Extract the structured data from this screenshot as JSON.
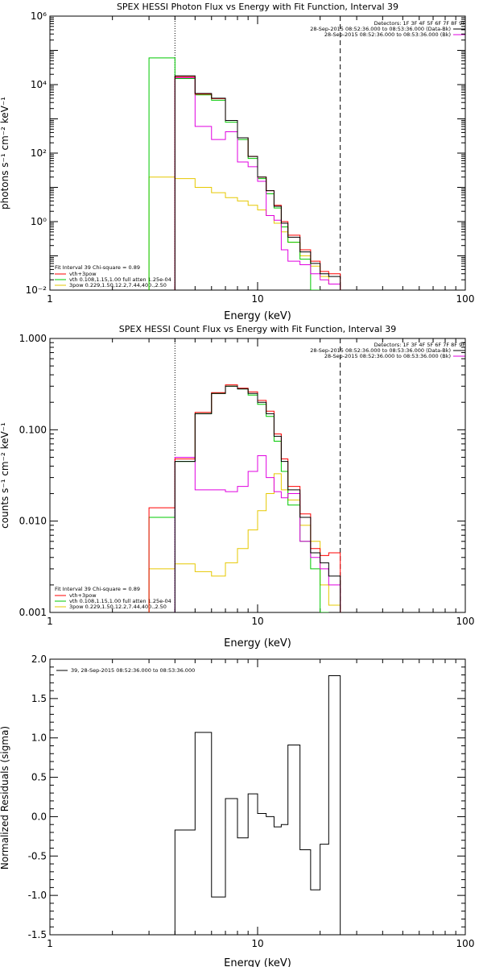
{
  "colors": {
    "black": "#000000",
    "red": "#ff0000",
    "green": "#00c800",
    "magenta": "#e000e0",
    "yellow": "#e6c800"
  },
  "chart_data": [
    {
      "type": "line",
      "title": "SPEX HESSI Photon Flux vs Energy with Fit Function, Interval 39",
      "xlabel": "Energy (keV)",
      "ylabel": "photons s⁻¹ cm⁻² keV⁻¹",
      "xscale": "log",
      "yscale": "log",
      "xlim": [
        1,
        100
      ],
      "ylim": [
        0.01,
        1000000
      ],
      "xticks": [
        "1",
        "10",
        "100"
      ],
      "yticks": [
        "10⁻²",
        "10⁰",
        "10²",
        "10⁴",
        "10⁶"
      ],
      "ytick_values": [
        0.01,
        1,
        100,
        10000,
        1000000
      ],
      "edges": [
        3,
        4,
        5,
        6,
        7,
        8,
        9,
        10,
        11,
        12,
        13,
        14,
        16,
        18,
        20,
        22,
        25
      ],
      "vlines": [
        {
          "x": 4,
          "style": "dotted"
        },
        {
          "x": 25,
          "style": "dashed"
        }
      ],
      "series": [
        {
          "color": "black",
          "values": [
            null,
            18000,
            5500,
            4000,
            900,
            280,
            80,
            20,
            8,
            2.8,
            0.9,
            0.35,
            0.13,
            0.06,
            0.03,
            0.025
          ]
        },
        {
          "color": "red",
          "values": [
            null,
            17000,
            5300,
            3900,
            900,
            280,
            80,
            20,
            8,
            3.0,
            1.0,
            0.4,
            0.15,
            0.07,
            0.035,
            0.03
          ]
        },
        {
          "color": "green",
          "values": [
            60000,
            15000,
            5000,
            3500,
            800,
            250,
            70,
            18,
            6.5,
            2.5,
            0.7,
            0.25,
            0.08,
            0.01,
            null,
            null
          ]
        },
        {
          "color": "magenta",
          "values": [
            null,
            16000,
            600,
            250,
            420,
            55,
            40,
            15,
            1.5,
            1.1,
            0.15,
            0.07,
            0.055,
            0.03,
            0.02,
            0.015
          ]
        },
        {
          "color": "yellow",
          "values": [
            20,
            18,
            10,
            7,
            5,
            4,
            3,
            2.2,
            1.5,
            0.9,
            0.5,
            0.25,
            0.1,
            0.05,
            0.025,
            0.015
          ]
        }
      ],
      "legend_top": [
        "Detectors: 1F 3F 4F 5F 6F 7F 8F 9F",
        "28-Sep-2015 08:52:36.000 to 08:53:36.000 (Data-Bk)",
        "28-Sep-2015 08:52:36.000 to 08:53:36.000 (Bk)"
      ],
      "legend_bottom": [
        "Fit Interval 39   Chi-square = 0.89",
        "vth+3pow",
        "vth 0.108,1.15,1.00  full atten 1.25e-04",
        "3pow 0.229,1.50,12.2,7.44,400.,2.50"
      ]
    },
    {
      "type": "line",
      "title": "SPEX HESSI Count Flux vs Energy with Fit Function, Interval 39",
      "xlabel": "Energy (keV)",
      "ylabel": "counts s⁻¹ cm⁻² keV⁻¹",
      "xscale": "log",
      "yscale": "log",
      "xlim": [
        1,
        100
      ],
      "ylim": [
        0.001,
        1
      ],
      "xticks": [
        "1",
        "10",
        "100"
      ],
      "yticks": [
        "0.001",
        "0.010",
        "0.100",
        "1.000"
      ],
      "ytick_values": [
        0.001,
        0.01,
        0.1,
        1
      ],
      "edges": [
        3,
        4,
        5,
        6,
        7,
        8,
        9,
        10,
        11,
        12,
        13,
        14,
        16,
        18,
        20,
        22,
        25
      ],
      "vlines": [
        {
          "x": 4,
          "style": "dotted"
        },
        {
          "x": 25,
          "style": "dashed"
        }
      ],
      "series": [
        {
          "color": "black",
          "values": [
            null,
            0.045,
            0.15,
            0.25,
            0.3,
            0.28,
            0.25,
            0.2,
            0.15,
            0.085,
            0.045,
            0.022,
            0.011,
            0.0045,
            0.0035,
            0.0025
          ]
        },
        {
          "color": "red",
          "values": [
            0.014,
            0.048,
            0.155,
            0.255,
            0.31,
            0.285,
            0.26,
            0.21,
            0.16,
            0.09,
            0.048,
            0.024,
            0.012,
            0.005,
            0.0042,
            0.0045
          ]
        },
        {
          "color": "green",
          "values": [
            0.011,
            0.045,
            0.15,
            0.25,
            0.3,
            0.28,
            0.24,
            0.19,
            0.14,
            0.075,
            0.035,
            0.015,
            0.006,
            0.003,
            0.001,
            null
          ]
        },
        {
          "color": "magenta",
          "values": [
            null,
            0.05,
            0.022,
            0.022,
            0.021,
            0.024,
            0.035,
            0.052,
            0.03,
            0.021,
            0.018,
            0.02,
            0.006,
            0.004,
            0.003,
            0.002
          ]
        },
        {
          "color": "yellow",
          "values": [
            0.003,
            0.0034,
            0.0028,
            0.0025,
            0.0035,
            0.005,
            0.008,
            0.013,
            0.02,
            0.033,
            0.022,
            0.017,
            0.009,
            0.006,
            0.002,
            0.0012
          ]
        }
      ],
      "legend_top": [
        "Detectors: 1F 3F 4F 5F 6F 7F 8F 9F",
        "28-Sep-2015 08:52:36.000 to 08:53:36.000 (Data-Bk)",
        "28-Sep-2015 08:52:36.000 to 08:53:36.000 (Bk)"
      ],
      "legend_bottom": [
        "Fit Interval 39   Chi-square = 0.89",
        "vth+3pow",
        "vth 0.108,1.15,1.00  full atten 1.25e-04",
        "3pow 0.229,1.50,12.2,7.44,400.,2.50"
      ]
    },
    {
      "type": "line",
      "title": "",
      "xlabel": "Energy (keV)",
      "ylabel": "Normalized Residuals (sigma)",
      "xscale": "log",
      "yscale": "linear",
      "xlim": [
        1,
        100
      ],
      "ylim": [
        -1.5,
        2.0
      ],
      "xticks": [
        "1",
        "10",
        "100"
      ],
      "yticks": [
        "-1.5",
        "-1.0",
        "-0.5",
        "0.0",
        "0.5",
        "1.0",
        "1.5",
        "2.0"
      ],
      "ytick_values": [
        -1.5,
        -1.0,
        -0.5,
        0.0,
        0.5,
        1.0,
        1.5,
        2.0
      ],
      "edges": [
        4,
        5,
        6,
        7,
        8,
        9,
        10,
        11,
        12,
        13,
        14,
        16,
        18,
        20,
        22,
        25
      ],
      "vlines": [],
      "series": [
        {
          "color": "black",
          "values": [
            -0.17,
            1.07,
            -1.02,
            0.23,
            -0.27,
            0.29,
            0.04,
            0.0,
            -0.13,
            -0.1,
            0.91,
            -0.42,
            -0.93,
            -0.35,
            1.79
          ]
        }
      ],
      "legend_top": [],
      "legend_bottom": [],
      "legend_left": [
        "39, 28-Sep-2015 08:52:36.000 to 08:53:36.000"
      ]
    }
  ]
}
